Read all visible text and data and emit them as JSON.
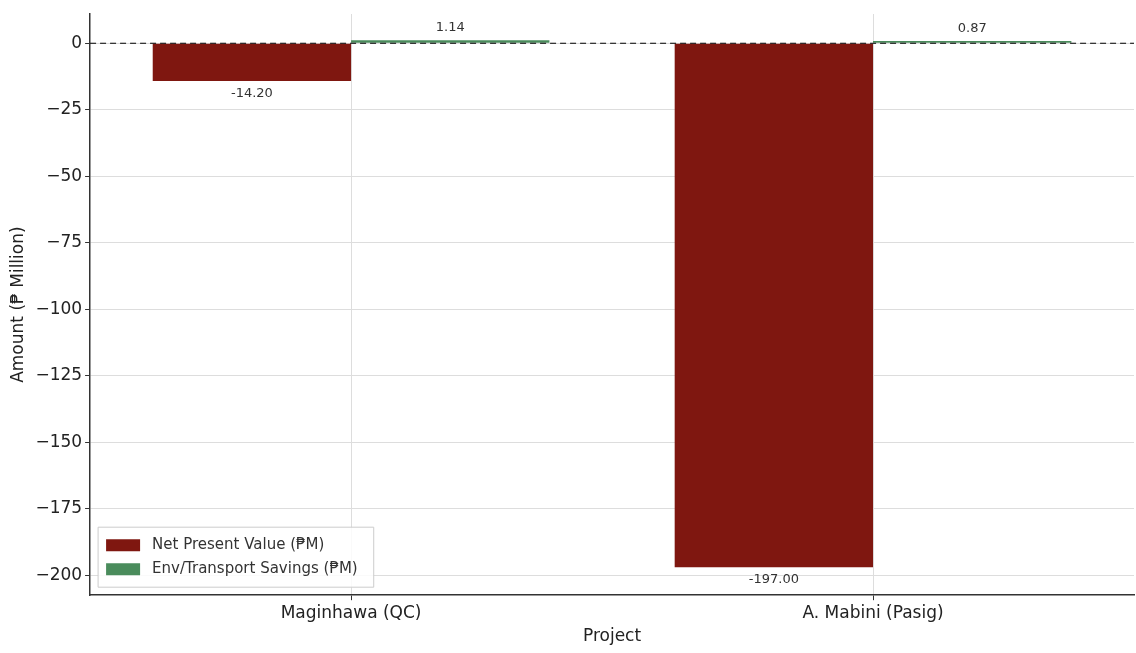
{
  "chart_data": {
    "type": "bar",
    "xlabel": "Project",
    "ylabel": "Amount (₱ Million)",
    "categories": [
      "Maginhawa (QC)",
      "A. Mabini (Pasig)"
    ],
    "series": [
      {
        "name": "Net Present Value (₱M)",
        "color": "#7f1710",
        "values": [
          -14.2,
          -197
        ],
        "value_labels": [
          "-14.20",
          "-197.00"
        ]
      },
      {
        "name": "Env/Transport Savings (₱M)",
        "color": "#4a8c5c",
        "values": [
          1.14,
          0.87
        ],
        "value_labels": [
          "1.14",
          "0.87"
        ]
      }
    ],
    "ylim": [
      -207.5,
      11
    ],
    "yticks": [
      {
        "value": 0,
        "label": "0"
      },
      {
        "value": -25,
        "label": "−25"
      },
      {
        "value": -50,
        "label": "−50"
      },
      {
        "value": -75,
        "label": "−75"
      },
      {
        "value": -100,
        "label": "−100"
      },
      {
        "value": -125,
        "label": "−125"
      },
      {
        "value": -150,
        "label": "−150"
      },
      {
        "value": -175,
        "label": "−175"
      },
      {
        "value": -200,
        "label": "−200"
      }
    ],
    "ref_lines": [
      {
        "axis": "y",
        "value": 0,
        "color": "#000000",
        "line_style": "dashed"
      }
    ],
    "grid": true,
    "legend": "bottom left"
  }
}
